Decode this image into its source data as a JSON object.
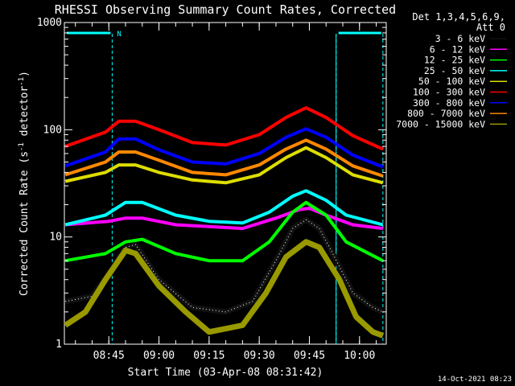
{
  "chart_data": {
    "type": "line",
    "title": "RHESSI Observing Summary Count Rates, Corrected",
    "ylabel": "Corrected Count Rate (s⁻¹ detector⁻¹)",
    "ylabel_parts": {
      "main": "Corrected Count Rate (s",
      "sup1": "-1",
      "mid": " detector",
      "sup2": "-1",
      "end": ")"
    },
    "xlabel": "Start Time (03-Apr-08 08:31:42)",
    "yscale": "log",
    "ylim": [
      1,
      1000
    ],
    "xlim": [
      "08:31:42",
      "10:08:00"
    ],
    "x_ticks": [
      "08:45",
      "09:00",
      "09:15",
      "09:30",
      "09:45",
      "10:00"
    ],
    "y_ticks": [
      "1",
      "10",
      "100",
      "1000"
    ],
    "detector_info": [
      "Det 1,3,4,5,6,9,",
      "Att 0"
    ],
    "night_marker_label": "N",
    "series": [
      {
        "name": "3 - 6 keV",
        "color": "#000000",
        "x": [
          "08:32",
          "08:40",
          "08:46",
          "08:50",
          "08:53",
          "09:00",
          "09:10",
          "09:20",
          "09:28",
          "09:35",
          "09:40",
          "09:44",
          "09:48",
          "09:52",
          "09:58",
          "10:04",
          "10:07"
        ],
        "y": [
          2.5,
          2.8,
          5,
          8,
          8.5,
          4,
          2.2,
          2,
          2.5,
          6,
          12,
          14.5,
          12,
          7,
          3,
          2.2,
          2
        ]
      },
      {
        "name": "6 - 12 keV",
        "color": "#ff00ff",
        "x": [
          "08:32",
          "08:45",
          "08:50",
          "08:55",
          "09:05",
          "09:15",
          "09:25",
          "09:35",
          "09:42",
          "09:45",
          "09:50",
          "09:58",
          "10:07"
        ],
        "y": [
          13,
          14,
          15,
          15,
          13,
          12.5,
          12,
          15,
          18,
          18.5,
          16,
          13,
          12
        ]
      },
      {
        "name": "12 - 25 keV",
        "color": "#00ff00",
        "x": [
          "08:32",
          "08:44",
          "08:50",
          "08:55",
          "09:05",
          "09:15",
          "09:25",
          "09:33",
          "09:40",
          "09:44",
          "09:50",
          "09:56",
          "10:07"
        ],
        "y": [
          6,
          7,
          9,
          9.5,
          7,
          6,
          6,
          9,
          17,
          21,
          16,
          9,
          6
        ]
      },
      {
        "name": "25 - 50 keV",
        "color": "#00ffff",
        "x": [
          "08:32",
          "08:44",
          "08:50",
          "08:55",
          "09:05",
          "09:15",
          "09:25",
          "09:33",
          "09:40",
          "09:44",
          "09:50",
          "09:56",
          "10:07"
        ],
        "y": [
          13,
          16,
          21,
          21,
          16,
          14,
          13.5,
          17,
          24,
          27,
          22,
          16,
          13
        ]
      },
      {
        "name": "50 - 100 keV",
        "color": "#dddd00",
        "x": [
          "08:32",
          "08:44",
          "08:48",
          "08:53",
          "09:00",
          "09:10",
          "09:20",
          "09:30",
          "09:38",
          "09:44",
          "09:50",
          "09:58",
          "10:07"
        ],
        "y": [
          33,
          40,
          47,
          47,
          40,
          34,
          32,
          38,
          55,
          68,
          55,
          38,
          32
        ]
      },
      {
        "name": "100 - 300 keV",
        "color": "#ff0000",
        "x": [
          "08:32",
          "08:44",
          "08:48",
          "08:53",
          "09:00",
          "09:10",
          "09:20",
          "09:30",
          "09:38",
          "09:44",
          "09:50",
          "09:58",
          "10:07"
        ],
        "y": [
          70,
          95,
          120,
          120,
          100,
          76,
          72,
          90,
          130,
          160,
          130,
          88,
          66
        ]
      },
      {
        "name": "300 - 800 keV",
        "color": "#0000ff",
        "x": [
          "08:32",
          "08:44",
          "08:48",
          "08:53",
          "09:00",
          "09:10",
          "09:20",
          "09:30",
          "09:38",
          "09:44",
          "09:50",
          "09:58",
          "10:07"
        ],
        "y": [
          46,
          62,
          82,
          82,
          65,
          50,
          48,
          60,
          85,
          102,
          85,
          58,
          45
        ]
      },
      {
        "name": "800 - 7000 keV",
        "color": "#ff8800",
        "x": [
          "08:32",
          "08:44",
          "08:48",
          "08:53",
          "09:00",
          "09:10",
          "09:20",
          "09:30",
          "09:38",
          "09:44",
          "09:50",
          "09:58",
          "10:07"
        ],
        "y": [
          38,
          50,
          62,
          62,
          52,
          40,
          38,
          47,
          66,
          80,
          66,
          46,
          37
        ]
      },
      {
        "name": "7000 - 15000 keV",
        "color": "#999900",
        "x": [
          "08:32",
          "08:38",
          "08:44",
          "08:50",
          "08:53",
          "09:00",
          "09:08",
          "09:15",
          "09:25",
          "09:32",
          "09:38",
          "09:44",
          "09:48",
          "09:54",
          "09:59",
          "10:04",
          "10:07"
        ],
        "y": [
          1.5,
          2,
          4,
          7.5,
          7,
          3.5,
          2,
          1.3,
          1.5,
          3,
          6.5,
          9,
          8,
          4,
          1.8,
          1.3,
          1.2
        ]
      }
    ],
    "night_markers": [
      "08:46",
      "09:53",
      "10:07"
    ],
    "annotation_bars": [
      [
        "08:31:42",
        "08:46"
      ],
      [
        "09:53",
        "10:07"
      ]
    ]
  },
  "footer_timestamp": "14-Oct-2021 08:23"
}
